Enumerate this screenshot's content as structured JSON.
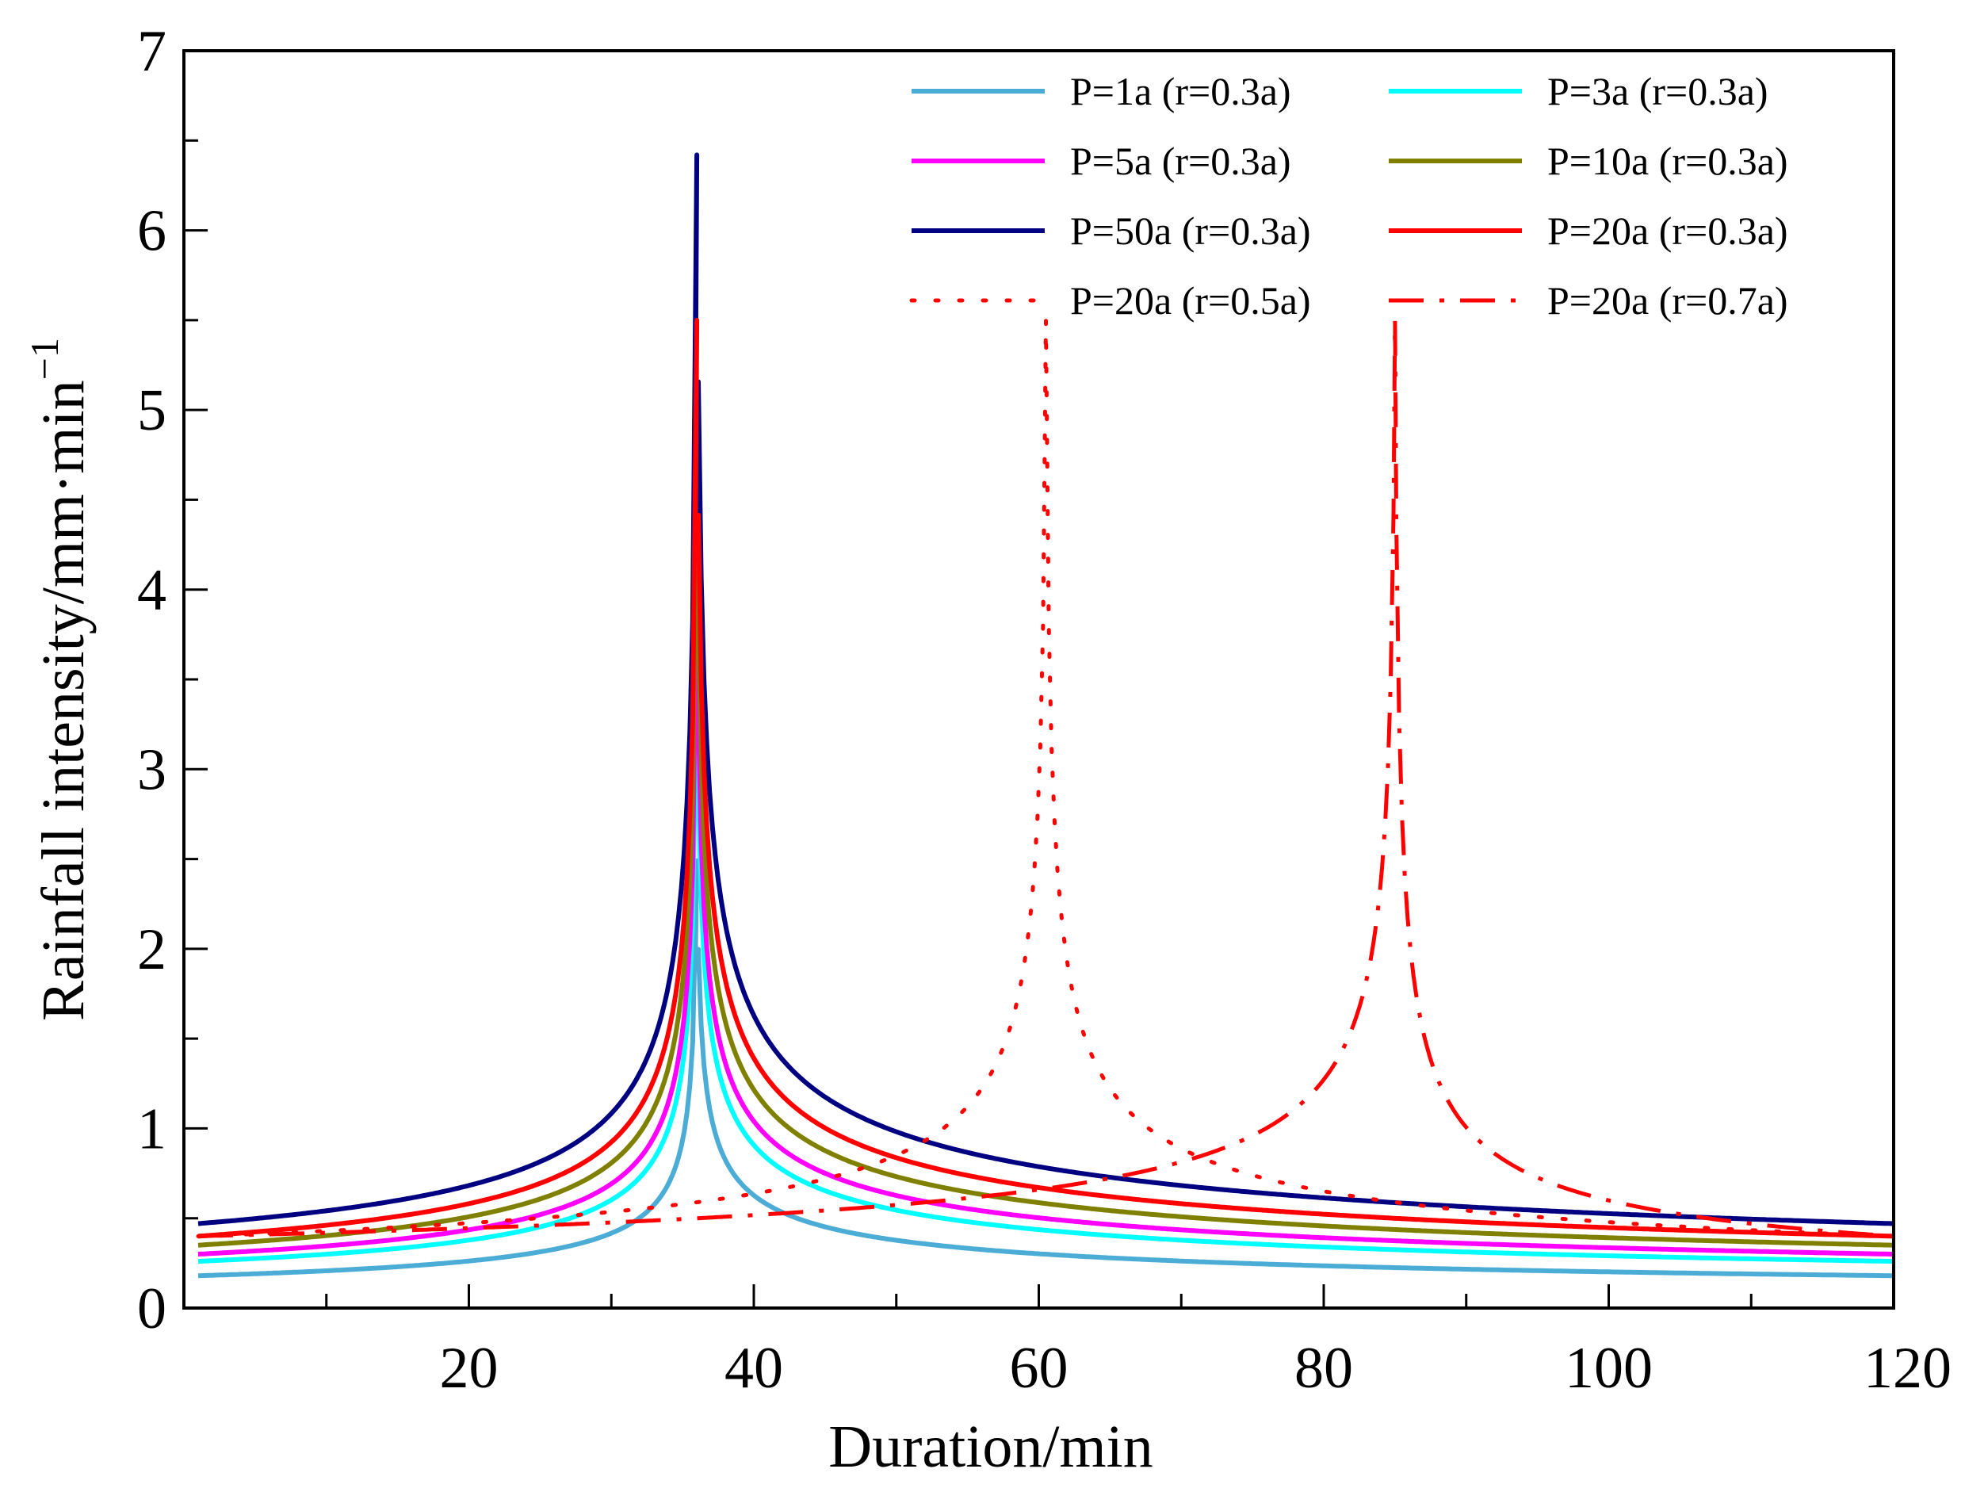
{
  "chart_data": {
    "type": "line",
    "title": "",
    "xlabel": "Duration/min",
    "ylabel": "Rainfall intensity/mm·min",
    "ylabel_superscript": "−1",
    "xlim": [
      0,
      120
    ],
    "ylim": [
      0,
      7
    ],
    "x_ticks": [
      "20",
      "40",
      "60",
      "80",
      "100",
      "120"
    ],
    "y_ticks": [
      "0",
      "1",
      "2",
      "3",
      "4",
      "5",
      "6",
      "7"
    ],
    "grid": false,
    "legend_position": "top-right",
    "series": [
      {
        "name": "P=1a (r=0.3a)",
        "color": "#4bacd6",
        "dash": "solid",
        "peak_x": 36,
        "peak": 2.49,
        "start": 0.18,
        "end": 0.18
      },
      {
        "name": "P=3a (r=0.3a)",
        "color": "#00ffff",
        "dash": "solid",
        "peak_x": 36,
        "peak": 3.6,
        "start": 0.26,
        "end": 0.26
      },
      {
        "name": "P=5a (r=0.3a)",
        "color": "#ff00ff",
        "dash": "solid",
        "peak_x": 36,
        "peak": 4.1,
        "start": 0.3,
        "end": 0.3
      },
      {
        "name": "P=10a (r=0.3a)",
        "color": "#808000",
        "dash": "solid",
        "peak_x": 36,
        "peak": 4.8,
        "start": 0.35,
        "end": 0.35
      },
      {
        "name": "P=50a (r=0.3a)",
        "color": "#000080",
        "dash": "solid",
        "peak_x": 36,
        "peak": 6.42,
        "start": 0.47,
        "end": 0.47
      },
      {
        "name": "P=20a (r=0.3a)",
        "color": "#ff0000",
        "dash": "solid",
        "peak_x": 36,
        "peak": 5.5,
        "start": 0.4,
        "end": 0.4
      },
      {
        "name": "P=20a (r=0.5a)",
        "color": "#ff0000",
        "dash": "dot",
        "peak_x": 60.5,
        "peak": 5.5,
        "start": 0.4,
        "end": 0.4
      },
      {
        "name": "P=20a (r=0.7a)",
        "color": "#ff0000",
        "dash": "dashdot",
        "peak_x": 85,
        "peak": 5.5,
        "start": 0.4,
        "end": 0.4
      }
    ]
  }
}
